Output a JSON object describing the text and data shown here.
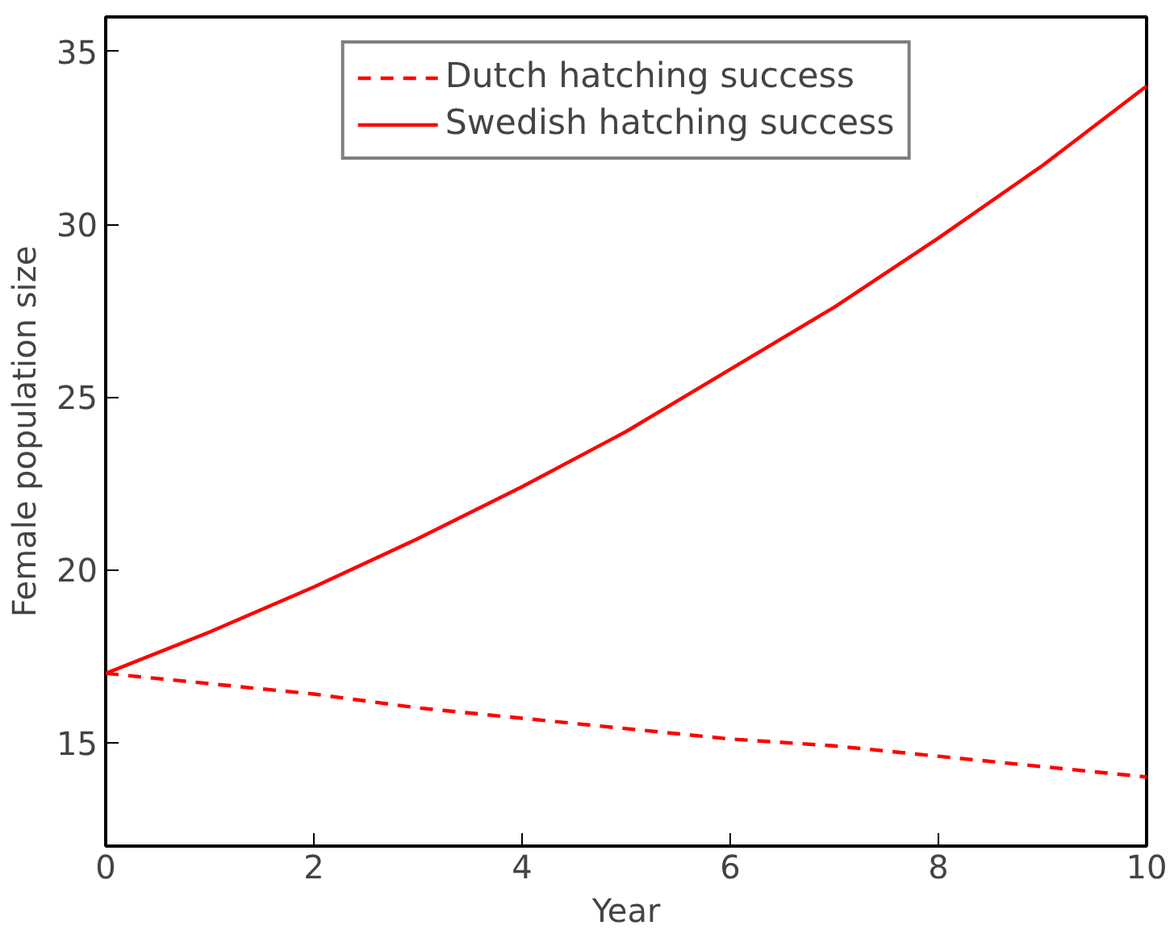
{
  "chart_data": {
    "type": "line",
    "xlabel": "Year",
    "ylabel": "Female population size",
    "x": [
      0,
      1,
      2,
      3,
      4,
      5,
      6,
      7,
      8,
      9,
      10
    ],
    "series": [
      {
        "name": "Dutch hatching success",
        "color": "#ff0000",
        "line_style": "dashed",
        "values": [
          17,
          16.7,
          16.4,
          16.0,
          15.7,
          15.4,
          15.1,
          14.9,
          14.6,
          14.3,
          14.0
        ]
      },
      {
        "name": "Swedish hatching success",
        "color": "#ff0000",
        "line_style": "solid",
        "values": [
          17,
          18.2,
          19.5,
          20.9,
          22.4,
          24.0,
          25.8,
          27.6,
          29.6,
          31.7,
          34.0
        ]
      }
    ],
    "xlim": [
      0,
      10
    ],
    "ylim": [
      12,
      36
    ],
    "xticks": [
      0,
      2,
      4,
      6,
      8,
      10
    ],
    "yticks": [
      15,
      20,
      25,
      30,
      35
    ],
    "grid": false,
    "legend": "top",
    "marker": "none"
  }
}
